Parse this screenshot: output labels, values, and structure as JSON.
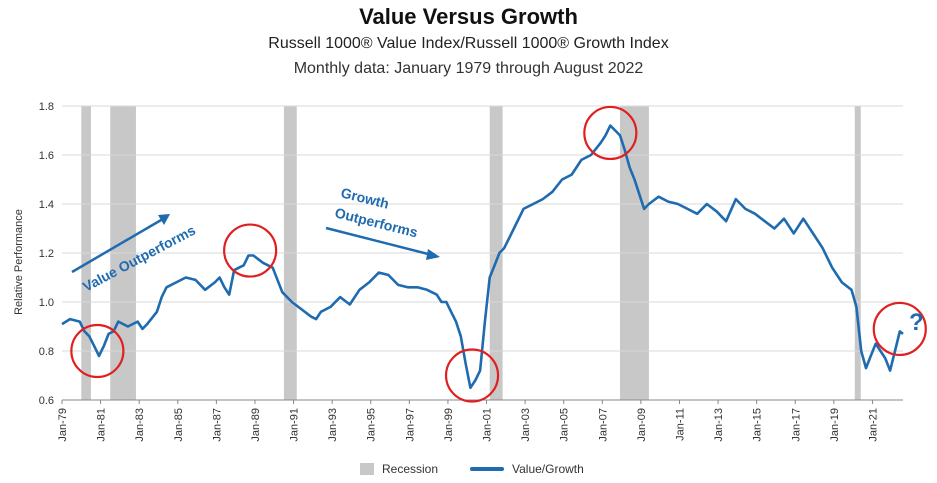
{
  "chart_data": {
    "type": "line",
    "title": "Value Versus Growth",
    "subtitle": "Russell 1000® Value Index/Russell 1000® Growth Index",
    "subtitle2": "Monthly data: January 1979 through August 2022",
    "ylabel": "Relative Performance",
    "xlabel": "",
    "ylim": [
      0.6,
      1.8
    ],
    "yticks": [
      "0.6",
      "0.8",
      "1.0",
      "1.2",
      "1.4",
      "1.6",
      "1.8"
    ],
    "xlim": [
      "1979-01",
      "2022-08"
    ],
    "xticks": [
      "Jan-79",
      "Jan-81",
      "Jan-83",
      "Jan-85",
      "Jan-87",
      "Jan-89",
      "Jan-91",
      "Jan-93",
      "Jan-95",
      "Jan-97",
      "Jan-99",
      "Jan-01",
      "Jan-03",
      "Jan-05",
      "Jan-07",
      "Jan-09",
      "Jan-11",
      "Jan-13",
      "Jan-15",
      "Jan-17",
      "Jan-19",
      "Jan-21"
    ],
    "grid": true,
    "legend_position": "bottom",
    "legend": [
      "Recession",
      "Value/Growth"
    ],
    "colors": {
      "line": "#1f6bb0",
      "recession": "#c8c8c8",
      "circle": "#e02020",
      "annotation": "#1f6bb0"
    },
    "recessions": [
      [
        "1980-01",
        "1980-07"
      ],
      [
        "1981-07",
        "1982-11"
      ],
      [
        "1990-07",
        "1991-03"
      ],
      [
        "2001-03",
        "2001-11"
      ],
      [
        "2007-12",
        "2009-06"
      ],
      [
        "2020-02",
        "2020-04"
      ]
    ],
    "series": [
      {
        "name": "Value/Growth",
        "x": [
          "1979-01",
          "1979-06",
          "1979-12",
          "1980-03",
          "1980-06",
          "1980-09",
          "1980-12",
          "1981-03",
          "1981-06",
          "1981-09",
          "1981-12",
          "1982-06",
          "1982-12",
          "1983-03",
          "1983-06",
          "1983-12",
          "1984-03",
          "1984-06",
          "1984-12",
          "1985-06",
          "1985-12",
          "1986-06",
          "1986-12",
          "1987-03",
          "1987-06",
          "1987-09",
          "1987-12",
          "1988-03",
          "1988-06",
          "1988-09",
          "1988-12",
          "1989-06",
          "1989-12",
          "1990-06",
          "1990-12",
          "1991-06",
          "1991-12",
          "1992-03",
          "1992-06",
          "1992-12",
          "1993-06",
          "1993-12",
          "1994-06",
          "1994-12",
          "1995-06",
          "1995-12",
          "1996-06",
          "1996-12",
          "1997-06",
          "1997-12",
          "1998-03",
          "1998-06",
          "1998-09",
          "1998-12",
          "1999-03",
          "1999-06",
          "1999-09",
          "1999-12",
          "2000-03",
          "2000-06",
          "2000-09",
          "2000-12",
          "2001-03",
          "2001-06",
          "2001-09",
          "2001-12",
          "2002-06",
          "2002-12",
          "2003-06",
          "2003-12",
          "2004-06",
          "2004-12",
          "2005-06",
          "2005-12",
          "2006-06",
          "2006-12",
          "2007-03",
          "2007-06",
          "2007-09",
          "2007-12",
          "2008-03",
          "2008-06",
          "2008-09",
          "2008-12",
          "2009-03",
          "2009-06",
          "2009-12",
          "2010-06",
          "2010-12",
          "2011-06",
          "2011-12",
          "2012-06",
          "2012-12",
          "2013-06",
          "2013-12",
          "2014-06",
          "2014-12",
          "2015-06",
          "2015-12",
          "2016-06",
          "2016-12",
          "2017-06",
          "2017-12",
          "2018-06",
          "2018-12",
          "2019-06",
          "2019-12",
          "2020-03",
          "2020-06",
          "2020-09",
          "2020-12",
          "2021-03",
          "2021-06",
          "2021-09",
          "2021-12",
          "2022-03",
          "2022-06",
          "2022-08"
        ],
        "values": [
          0.91,
          0.93,
          0.92,
          0.88,
          0.86,
          0.82,
          0.78,
          0.82,
          0.87,
          0.88,
          0.92,
          0.9,
          0.92,
          0.89,
          0.91,
          0.96,
          1.02,
          1.06,
          1.08,
          1.1,
          1.09,
          1.05,
          1.08,
          1.1,
          1.06,
          1.03,
          1.13,
          1.14,
          1.15,
          1.19,
          1.19,
          1.16,
          1.14,
          1.04,
          1.0,
          0.97,
          0.94,
          0.93,
          0.96,
          0.98,
          1.02,
          0.99,
          1.05,
          1.08,
          1.12,
          1.11,
          1.07,
          1.06,
          1.06,
          1.05,
          1.04,
          1.03,
          1.0,
          1.0,
          0.96,
          0.92,
          0.86,
          0.75,
          0.65,
          0.68,
          0.72,
          0.92,
          1.1,
          1.15,
          1.2,
          1.22,
          1.3,
          1.38,
          1.4,
          1.42,
          1.45,
          1.5,
          1.52,
          1.58,
          1.6,
          1.65,
          1.68,
          1.72,
          1.7,
          1.68,
          1.62,
          1.55,
          1.5,
          1.44,
          1.38,
          1.4,
          1.43,
          1.41,
          1.4,
          1.38,
          1.36,
          1.4,
          1.37,
          1.33,
          1.42,
          1.38,
          1.36,
          1.33,
          1.3,
          1.34,
          1.28,
          1.34,
          1.28,
          1.22,
          1.14,
          1.08,
          1.05,
          0.98,
          0.8,
          0.73,
          0.78,
          0.83,
          0.8,
          0.77,
          0.72,
          0.8,
          0.88,
          0.87
        ]
      }
    ],
    "annotations": {
      "value_outperforms": "Value Outperforms",
      "growth_outperforms_1": "Growth",
      "growth_outperforms_2": "Outperforms",
      "question": "?"
    },
    "circled_points": [
      {
        "x": "1980-11",
        "y": 0.8
      },
      {
        "x": "1988-10",
        "y": 1.21
      },
      {
        "x": "2000-04",
        "y": 0.7
      },
      {
        "x": "2007-06",
        "y": 1.69
      },
      {
        "x": "2022-06",
        "y": 0.89
      }
    ]
  }
}
